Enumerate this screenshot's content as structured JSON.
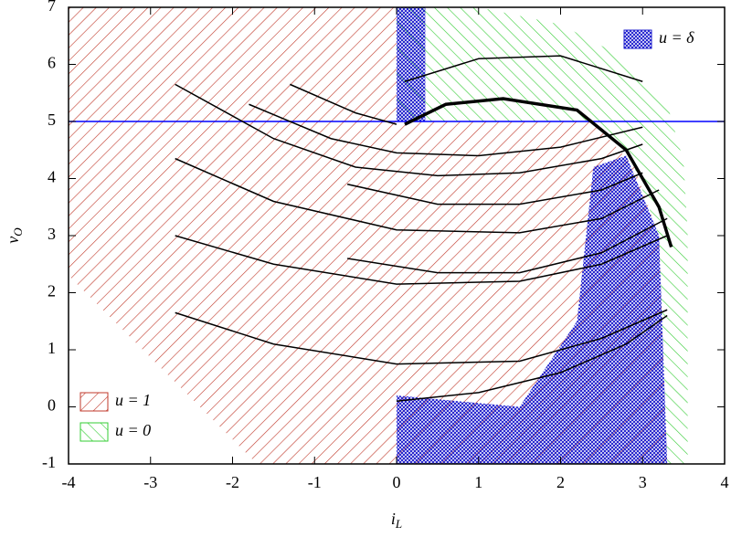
{
  "chart_data": {
    "type": "line",
    "xlim": [
      -4,
      4
    ],
    "ylim": [
      -1,
      7
    ],
    "xticks": [
      -4,
      -3,
      -2,
      -1,
      0,
      1,
      2,
      3,
      4
    ],
    "yticks": [
      -1,
      0,
      1,
      2,
      3,
      4,
      5,
      6,
      7
    ],
    "xlabel": {
      "text": "i",
      "sub": "L"
    },
    "ylabel": {
      "text": "v",
      "sub": "O"
    },
    "hline": {
      "y": 5,
      "color": "#0000ff"
    },
    "regions": [
      {
        "name": "u = 1",
        "color": "#c0392b",
        "pattern": "diagonal-down",
        "legend": "lower left",
        "polygons": [
          {
            "x": [
              -4,
              0,
              0,
              2.4,
              2.9,
              3.2,
              3.3,
              -1.7,
              -4
            ],
            "y": [
              7,
              7,
              5,
              5,
              4.2,
              3,
              -1,
              -1,
              2.3
            ]
          }
        ]
      },
      {
        "name": "u = 0",
        "color": "#33cc33",
        "pattern": "diagonal-up",
        "legend": "lower left",
        "polygons": [
          {
            "x": [
              0,
              1,
              2,
              2.8,
              3.3,
              3.5,
              3.55,
              3.55,
              3.3,
              3.2,
              2.9,
              2.4,
              0
            ],
            "y": [
              7,
              7,
              6.7,
              6.1,
              5.3,
              4.3,
              3,
              -1,
              -1,
              3,
              4.2,
              5,
              5
            ]
          }
        ]
      },
      {
        "name": "u = δ",
        "color": "#1a1acc",
        "pattern": "crosshatch",
        "legend": "upper right",
        "polygons": [
          {
            "x": [
              0,
              0,
              1.5,
              2.2,
              2.4,
              2.8,
              3.2,
              3.3
            ],
            "y": [
              -1,
              0.2,
              0,
              1.5,
              4.2,
              4.4,
              3,
              -1
            ]
          },
          {
            "x": [
              0,
              0.35,
              0.35,
              0
            ],
            "y": [
              5,
              5,
              7,
              7
            ]
          }
        ]
      }
    ],
    "series": [
      {
        "color": "#000000",
        "width": 3.5,
        "x": [
          0.1,
          0.6,
          1.3,
          2.2,
          2.8,
          3.2,
          3.35
        ],
        "y": [
          4.95,
          5.3,
          5.4,
          5.2,
          4.5,
          3.5,
          2.8
        ]
      },
      {
        "color": "#000000",
        "width": 1.5,
        "x": [
          -2.7,
          -1.5,
          -0.5,
          0.5,
          1.5,
          2.5,
          3.0
        ],
        "y": [
          5.65,
          4.7,
          4.2,
          4.05,
          4.1,
          4.35,
          4.6
        ]
      },
      {
        "color": "#000000",
        "width": 1.5,
        "x": [
          -1.3,
          -0.5,
          0
        ],
        "y": [
          5.65,
          5.15,
          4.95
        ]
      },
      {
        "color": "#000000",
        "width": 1.5,
        "x": [
          -2.7,
          -1.5,
          0,
          1.5,
          2.5,
          3.2
        ],
        "y": [
          4.35,
          3.6,
          3.1,
          3.05,
          3.3,
          3.8
        ]
      },
      {
        "color": "#000000",
        "width": 1.5,
        "x": [
          -2.7,
          -1.5,
          0,
          1.5,
          2.5,
          3.3
        ],
        "y": [
          3,
          2.5,
          2.15,
          2.2,
          2.5,
          3
        ]
      },
      {
        "color": "#000000",
        "width": 1.5,
        "x": [
          -2.7,
          -1.5,
          0,
          1.5,
          2.5,
          3.3
        ],
        "y": [
          1.65,
          1.1,
          0.75,
          0.8,
          1.2,
          1.7
        ]
      },
      {
        "color": "#000000",
        "width": 1.5,
        "x": [
          -0.6,
          0.5,
          1.5,
          2.5,
          3.0
        ],
        "y": [
          3.9,
          3.55,
          3.55,
          3.8,
          4.1
        ]
      },
      {
        "color": "#000000",
        "width": 1.5,
        "x": [
          -0.6,
          0.5,
          1.5,
          2.5,
          3.3
        ],
        "y": [
          2.6,
          2.35,
          2.35,
          2.7,
          3.3
        ]
      },
      {
        "color": "#000000",
        "width": 1.5,
        "x": [
          0,
          1,
          2,
          2.8,
          3.3
        ],
        "y": [
          0.1,
          0.25,
          0.6,
          1.1,
          1.6
        ]
      },
      {
        "color": "#000000",
        "width": 1.5,
        "x": [
          0.1,
          1,
          2,
          3
        ],
        "y": [
          5.7,
          6.1,
          6.15,
          5.7
        ]
      },
      {
        "color": "#000000",
        "width": 1.5,
        "x": [
          -1.8,
          -0.8,
          0,
          1,
          2,
          3
        ],
        "y": [
          5.3,
          4.7,
          4.45,
          4.4,
          4.55,
          4.9
        ]
      }
    ]
  }
}
